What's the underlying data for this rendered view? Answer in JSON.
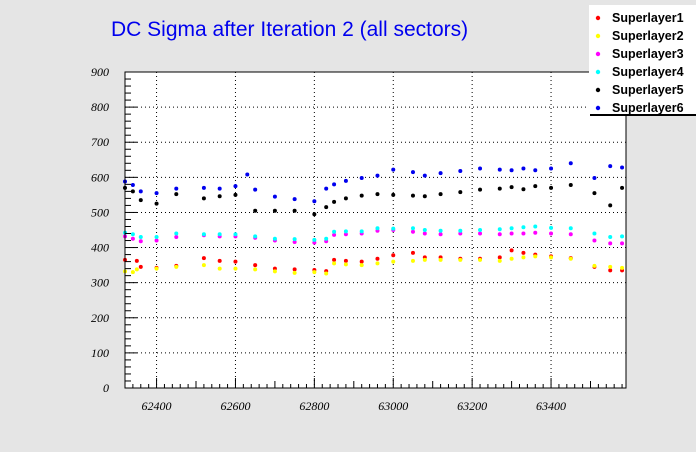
{
  "chart_data": {
    "type": "scatter",
    "title": "DC Sigma after Iteration 2 (all sectors)",
    "xlabel": "",
    "ylabel": "",
    "xlim": [
      62320,
      63590
    ],
    "ylim": [
      0,
      900
    ],
    "x_ticks": [
      62400,
      62600,
      62800,
      63000,
      63200,
      63400
    ],
    "y_ticks": [
      0,
      100,
      200,
      300,
      400,
      500,
      600,
      700,
      800,
      900
    ],
    "grid": true,
    "legend_position": "top-right",
    "series": [
      {
        "name": "Superlayer1",
        "color": "#ff0000",
        "points": [
          [
            62320,
            365
          ],
          [
            62350,
            362
          ],
          [
            62360,
            345
          ],
          [
            62400,
            342
          ],
          [
            62450,
            348
          ],
          [
            62520,
            370
          ],
          [
            62560,
            362
          ],
          [
            62600,
            360
          ],
          [
            62650,
            350
          ],
          [
            62700,
            340
          ],
          [
            62750,
            338
          ],
          [
            62800,
            336
          ],
          [
            62830,
            333
          ],
          [
            62850,
            365
          ],
          [
            62880,
            362
          ],
          [
            62920,
            360
          ],
          [
            62960,
            368
          ],
          [
            63000,
            378
          ],
          [
            63050,
            385
          ],
          [
            63080,
            372
          ],
          [
            63120,
            372
          ],
          [
            63170,
            368
          ],
          [
            63220,
            368
          ],
          [
            63270,
            372
          ],
          [
            63300,
            392
          ],
          [
            63330,
            385
          ],
          [
            63360,
            380
          ],
          [
            63400,
            375
          ],
          [
            63450,
            370
          ],
          [
            63510,
            345
          ],
          [
            63550,
            335
          ],
          [
            63580,
            335
          ]
        ]
      },
      {
        "name": "Superlayer2",
        "color": "#ffff00",
        "points": [
          [
            62320,
            332
          ],
          [
            62340,
            330
          ],
          [
            62350,
            338
          ],
          [
            62400,
            340
          ],
          [
            62450,
            345
          ],
          [
            62520,
            350
          ],
          [
            62560,
            340
          ],
          [
            62600,
            340
          ],
          [
            62650,
            338
          ],
          [
            62700,
            332
          ],
          [
            62750,
            328
          ],
          [
            62800,
            330
          ],
          [
            62830,
            326
          ],
          [
            62850,
            355
          ],
          [
            62880,
            352
          ],
          [
            62920,
            350
          ],
          [
            62960,
            355
          ],
          [
            63000,
            360
          ],
          [
            63050,
            362
          ],
          [
            63080,
            365
          ],
          [
            63120,
            365
          ],
          [
            63170,
            365
          ],
          [
            63220,
            365
          ],
          [
            63270,
            362
          ],
          [
            63300,
            368
          ],
          [
            63330,
            372
          ],
          [
            63360,
            375
          ],
          [
            63400,
            372
          ],
          [
            63450,
            368
          ],
          [
            63510,
            348
          ],
          [
            63550,
            345
          ],
          [
            63580,
            342
          ]
        ]
      },
      {
        "name": "Superlayer3",
        "color": "#ff00ff",
        "points": [
          [
            62320,
            432
          ],
          [
            62340,
            425
          ],
          [
            62360,
            418
          ],
          [
            62400,
            420
          ],
          [
            62450,
            430
          ],
          [
            62520,
            435
          ],
          [
            62560,
            432
          ],
          [
            62600,
            432
          ],
          [
            62650,
            428
          ],
          [
            62700,
            420
          ],
          [
            62750,
            416
          ],
          [
            62800,
            414
          ],
          [
            62830,
            418
          ],
          [
            62850,
            436
          ],
          [
            62880,
            438
          ],
          [
            62920,
            440
          ],
          [
            62960,
            448
          ],
          [
            63000,
            450
          ],
          [
            63050,
            445
          ],
          [
            63080,
            440
          ],
          [
            63120,
            438
          ],
          [
            63170,
            440
          ],
          [
            63220,
            440
          ],
          [
            63270,
            438
          ],
          [
            63300,
            440
          ],
          [
            63330,
            440
          ],
          [
            63360,
            442
          ],
          [
            63400,
            440
          ],
          [
            63450,
            438
          ],
          [
            63510,
            420
          ],
          [
            63550,
            412
          ],
          [
            63580,
            412
          ]
        ]
      },
      {
        "name": "Superlayer4",
        "color": "#00ffff",
        "points": [
          [
            62320,
            442
          ],
          [
            62340,
            438
          ],
          [
            62360,
            430
          ],
          [
            62400,
            430
          ],
          [
            62450,
            440
          ],
          [
            62520,
            438
          ],
          [
            62560,
            438
          ],
          [
            62600,
            438
          ],
          [
            62650,
            432
          ],
          [
            62700,
            425
          ],
          [
            62750,
            424
          ],
          [
            62800,
            422
          ],
          [
            62830,
            425
          ],
          [
            62850,
            445
          ],
          [
            62880,
            446
          ],
          [
            62920,
            446
          ],
          [
            62960,
            455
          ],
          [
            63000,
            454
          ],
          [
            63050,
            455
          ],
          [
            63080,
            450
          ],
          [
            63120,
            448
          ],
          [
            63170,
            448
          ],
          [
            63220,
            450
          ],
          [
            63270,
            452
          ],
          [
            63300,
            455
          ],
          [
            63330,
            458
          ],
          [
            63360,
            460
          ],
          [
            63400,
            456
          ],
          [
            63450,
            455
          ],
          [
            63510,
            440
          ],
          [
            63550,
            430
          ],
          [
            63580,
            432
          ]
        ]
      },
      {
        "name": "Superlayer5",
        "color": "#000000",
        "points": [
          [
            62320,
            570
          ],
          [
            62340,
            560
          ],
          [
            62360,
            535
          ],
          [
            62400,
            525
          ],
          [
            62450,
            552
          ],
          [
            62520,
            540
          ],
          [
            62560,
            546
          ],
          [
            62600,
            550
          ],
          [
            62650,
            505
          ],
          [
            62700,
            505
          ],
          [
            62750,
            505
          ],
          [
            62800,
            495
          ],
          [
            62830,
            515
          ],
          [
            62850,
            530
          ],
          [
            62880,
            540
          ],
          [
            62920,
            548
          ],
          [
            62960,
            552
          ],
          [
            63000,
            550
          ],
          [
            63050,
            548
          ],
          [
            63080,
            546
          ],
          [
            63120,
            552
          ],
          [
            63170,
            558
          ],
          [
            63220,
            565
          ],
          [
            63270,
            568
          ],
          [
            63300,
            572
          ],
          [
            63330,
            566
          ],
          [
            63360,
            575
          ],
          [
            63400,
            570
          ],
          [
            63450,
            578
          ],
          [
            63510,
            555
          ],
          [
            63550,
            520
          ],
          [
            63580,
            570
          ]
        ]
      },
      {
        "name": "Superlayer6",
        "color": "#0000ee",
        "points": [
          [
            62320,
            588
          ],
          [
            62340,
            578
          ],
          [
            62360,
            560
          ],
          [
            62400,
            555
          ],
          [
            62450,
            568
          ],
          [
            62520,
            570
          ],
          [
            62560,
            568
          ],
          [
            62600,
            575
          ],
          [
            62630,
            608
          ],
          [
            62650,
            565
          ],
          [
            62700,
            545
          ],
          [
            62750,
            538
          ],
          [
            62800,
            532
          ],
          [
            62830,
            568
          ],
          [
            62850,
            580
          ],
          [
            62880,
            590
          ],
          [
            62920,
            598
          ],
          [
            62960,
            605
          ],
          [
            63000,
            622
          ],
          [
            63050,
            615
          ],
          [
            63080,
            605
          ],
          [
            63120,
            612
          ],
          [
            63170,
            618
          ],
          [
            63220,
            625
          ],
          [
            63270,
            622
          ],
          [
            63300,
            620
          ],
          [
            63330,
            625
          ],
          [
            63360,
            620
          ],
          [
            63400,
            625
          ],
          [
            63450,
            640
          ],
          [
            63510,
            598
          ],
          [
            63550,
            632
          ],
          [
            63580,
            628
          ]
        ]
      }
    ]
  }
}
